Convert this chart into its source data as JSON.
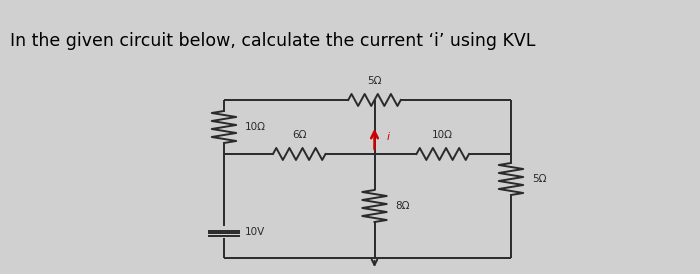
{
  "title": "In the given circuit below, calculate the current ‘i’ using KVL",
  "title_bg": "#f0f0b0",
  "bg_color": "#d0d0d0",
  "wire_color": "#2a2a2a",
  "arrow_color": "#cc0000",
  "labels": {
    "top_res": "5Ω",
    "mid_left_res": "6Ω",
    "mid_right_res": "10Ω",
    "left_res": "10Ω",
    "mid_res": "8Ω",
    "right_res": "5Ω",
    "voltage": "10V",
    "current": "i"
  },
  "xl": 0.32,
  "xm": 0.535,
  "xr": 0.73,
  "yt": 0.87,
  "ym": 0.6,
  "yb": 0.08
}
